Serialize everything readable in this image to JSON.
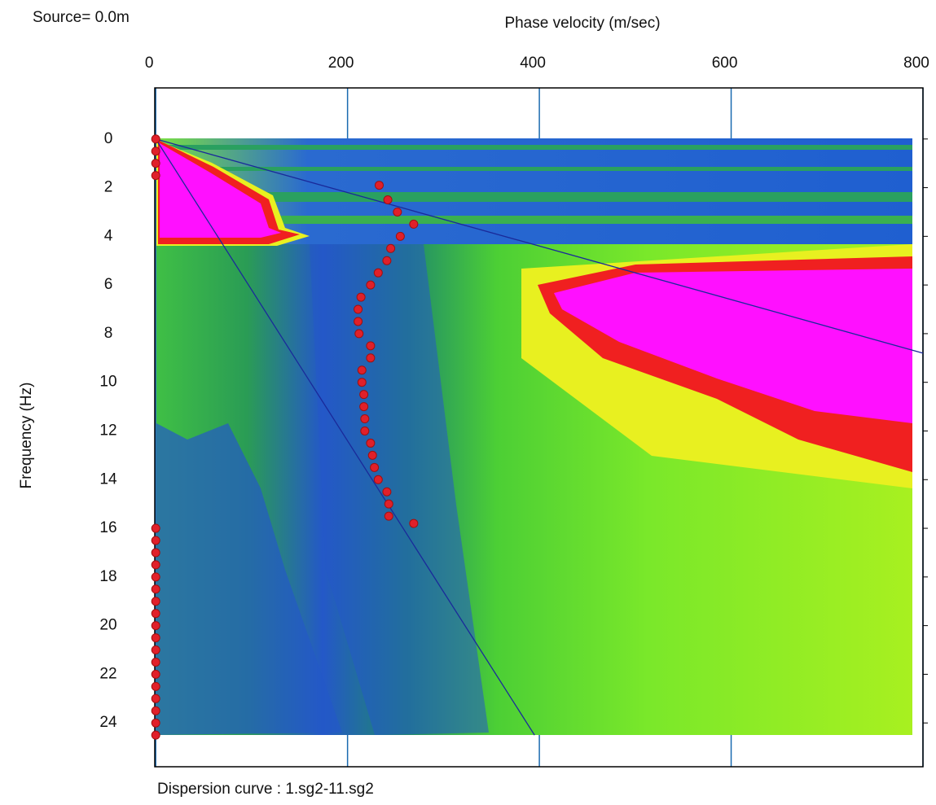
{
  "chart_data": {
    "type": "scatter",
    "title": "Source=  0.0m",
    "x_label": "Phase velocity (m/sec)",
    "y_label": "Frequency (Hz)",
    "footer": "Dispersion curve : 1.sg2-11.sg2",
    "xlim": [
      -1,
      800
    ],
    "xticks": [
      0,
      200,
      400,
      600,
      800
    ],
    "ylim": [
      -2.1,
      25.8
    ],
    "yticks": [
      0,
      2,
      4,
      6,
      8,
      10,
      12,
      14,
      16,
      18,
      20,
      22,
      24
    ],
    "y_inverted": true,
    "grid": true,
    "series": [
      {
        "color": "#e0202a",
        "x": [
          233,
          242,
          252,
          269,
          255,
          245,
          241,
          232,
          224,
          214,
          211,
          211,
          212,
          224,
          224,
          215,
          215,
          217,
          217,
          218,
          218,
          224,
          226,
          228,
          232,
          241,
          243,
          243,
          269
        ],
        "y": [
          1.9,
          2.5,
          3.0,
          3.5,
          4.0,
          4.5,
          5.0,
          5.5,
          6.0,
          6.5,
          7.0,
          7.5,
          8.0,
          8.5,
          9.0,
          9.5,
          10.0,
          10.5,
          11.0,
          11.5,
          12.0,
          12.5,
          13.0,
          13.5,
          14.0,
          14.5,
          15.0,
          15.5,
          15.8
        ]
      },
      {
        "color": "#e0202a",
        "x": [
          0,
          0,
          0,
          0,
          0,
          0,
          0,
          0,
          0,
          0,
          0,
          0,
          0,
          0,
          0,
          0,
          0,
          0,
          0,
          0,
          0,
          0
        ],
        "y": [
          0,
          0.5,
          1.0,
          1.5,
          16,
          16.5,
          17,
          17.5,
          18,
          18.5,
          19,
          19.5,
          20,
          20.5,
          21,
          21.5,
          22,
          22.5,
          23,
          23.5,
          24,
          24.5
        ]
      }
    ],
    "reference_lines": [
      {
        "color": "#1a2a9a",
        "x": [
          0,
          800
        ],
        "y": [
          0,
          8.8
        ]
      },
      {
        "color": "#1a2a9a",
        "x": [
          0,
          395
        ],
        "y": [
          0,
          24.5
        ]
      }
    ]
  }
}
